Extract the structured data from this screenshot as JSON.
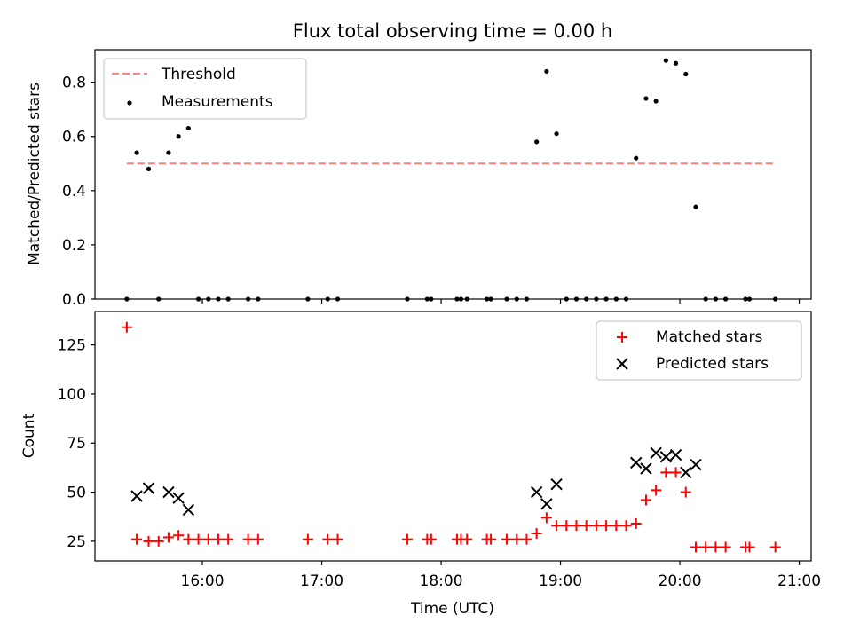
{
  "chart_data": [
    {
      "type": "scatter",
      "title": "Flux total observing time = 0.00 h",
      "xlabel": "",
      "ylabel": "Matched/Predicted stars",
      "xlim": [
        "15:06",
        "21:06"
      ],
      "ylim": [
        0,
        0.92
      ],
      "yticks": [
        0.0,
        0.2,
        0.4,
        0.6,
        0.8
      ],
      "ytick_labels": [
        "0.0",
        "0.2",
        "0.4",
        "0.6",
        "0.8"
      ],
      "grid": false,
      "legend_position": "top-left",
      "series": [
        {
          "name": "Threshold",
          "kind": "line",
          "style": "dashed",
          "color": "#ff7f7f",
          "x": [
            "15:22",
            "20:48"
          ],
          "y": [
            0.5,
            0.5
          ]
        },
        {
          "name": "Measurements",
          "kind": "scatter",
          "marker": "dot",
          "color": "#000000",
          "x": [
            "15:22",
            "15:27",
            "15:33",
            "15:38",
            "15:43",
            "15:48",
            "15:53",
            "15:58",
            "16:03",
            "16:08",
            "16:13",
            "16:23",
            "16:28",
            "16:53",
            "17:03",
            "17:08",
            "17:43",
            "17:53",
            "17:55",
            "18:08",
            "18:10",
            "18:13",
            "18:23",
            "18:25",
            "18:33",
            "18:38",
            "18:43",
            "18:48",
            "18:53",
            "18:58",
            "19:03",
            "19:08",
            "19:13",
            "19:18",
            "19:23",
            "19:28",
            "19:33",
            "19:38",
            "19:43",
            "19:48",
            "19:53",
            "19:58",
            "20:03",
            "20:08",
            "20:13",
            "20:18",
            "20:23",
            "20:33",
            "20:35",
            "20:48"
          ],
          "y": [
            0,
            0.54,
            0.48,
            0,
            0.54,
            0.6,
            0.63,
            0,
            0,
            0,
            0,
            0,
            0,
            0,
            0,
            0,
            0,
            0,
            0,
            0,
            0,
            0,
            0,
            0,
            0,
            0,
            0,
            0.58,
            0.84,
            0.61,
            0,
            0,
            0,
            0,
            0,
            0,
            0,
            0.52,
            0.74,
            0.73,
            0.88,
            0.87,
            0.83,
            0.34,
            0,
            0,
            0,
            0,
            0,
            0
          ]
        }
      ]
    },
    {
      "type": "scatter",
      "title": "",
      "xlabel": "Time (UTC)",
      "ylabel": "Count",
      "xlim": [
        "15:06",
        "21:06"
      ],
      "ylim": [
        15,
        142
      ],
      "xticks": [
        "16:00",
        "17:00",
        "18:00",
        "19:00",
        "20:00",
        "21:00"
      ],
      "yticks": [
        25,
        50,
        75,
        100,
        125
      ],
      "grid": false,
      "legend_position": "top-right",
      "series": [
        {
          "name": "Matched stars",
          "kind": "scatter",
          "marker": "plus",
          "color": "#ff0000",
          "x": [
            "15:22",
            "15:27",
            "15:33",
            "15:38",
            "15:43",
            "15:48",
            "15:53",
            "15:58",
            "16:03",
            "16:08",
            "16:13",
            "16:23",
            "16:28",
            "16:53",
            "17:03",
            "17:08",
            "17:43",
            "17:53",
            "17:55",
            "18:08",
            "18:10",
            "18:13",
            "18:23",
            "18:25",
            "18:33",
            "18:38",
            "18:43",
            "18:48",
            "18:53",
            "18:58",
            "19:03",
            "19:08",
            "19:13",
            "19:18",
            "19:23",
            "19:28",
            "19:33",
            "19:38",
            "19:43",
            "19:48",
            "19:53",
            "19:58",
            "20:03",
            "20:08",
            "20:13",
            "20:18",
            "20:23",
            "20:33",
            "20:35",
            "20:48"
          ],
          "y": [
            134,
            26,
            25,
            25,
            27,
            28,
            26,
            26,
            26,
            26,
            26,
            26,
            26,
            26,
            26,
            26,
            26,
            26,
            26,
            26,
            26,
            26,
            26,
            26,
            26,
            26,
            26,
            29,
            37,
            33,
            33,
            33,
            33,
            33,
            33,
            33,
            33,
            34,
            46,
            51,
            60,
            60,
            50,
            22,
            22,
            22,
            22,
            22,
            22,
            22
          ]
        },
        {
          "name": "Predicted stars",
          "kind": "scatter",
          "marker": "x",
          "color": "#000000",
          "x": [
            "15:27",
            "15:33",
            "15:43",
            "15:48",
            "15:53",
            "18:48",
            "18:53",
            "18:58",
            "19:38",
            "19:43",
            "19:48",
            "19:53",
            "19:58",
            "20:03",
            "20:08"
          ],
          "y": [
            48,
            52,
            50,
            47,
            41,
            50,
            44,
            54,
            65,
            62,
            70,
            68,
            69,
            60,
            64
          ]
        }
      ]
    }
  ]
}
